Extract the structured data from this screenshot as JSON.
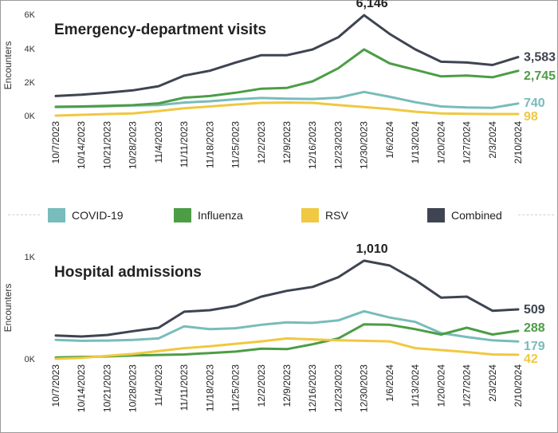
{
  "legend": [
    {
      "label": "COVID-19",
      "color": "#78bcbb"
    },
    {
      "label": "Influenza",
      "color": "#4c9d46"
    },
    {
      "label": "RSV",
      "color": "#f0c841"
    },
    {
      "label": "Combined",
      "color": "#3e4451"
    }
  ],
  "chart_data": [
    {
      "type": "line",
      "title": "Emergency-department visits",
      "ylabel": "Encounters",
      "yticks": [
        "6K",
        "4K",
        "2K",
        "0K"
      ],
      "ylim": [
        0,
        6200
      ],
      "categories": [
        "10/7/2023",
        "10/14/2023",
        "10/21/2023",
        "10/28/2023",
        "11/4/2023",
        "11/11/2023",
        "11/18/2023",
        "11/25/2023",
        "12/2/2023",
        "12/9/2023",
        "12/16/2023",
        "12/23/2023",
        "12/30/2023",
        "1/6/2024",
        "1/13/2024",
        "1/20/2024",
        "1/27/2024",
        "2/3/2024",
        "2/10/2024"
      ],
      "series": [
        {
          "name": "COVID-19",
          "color": "#78bcbb",
          "end_label": "740",
          "values": [
            520,
            540,
            570,
            620,
            650,
            800,
            880,
            1000,
            1080,
            1040,
            1020,
            1100,
            1450,
            1150,
            820,
            560,
            500,
            480,
            740
          ]
        },
        {
          "name": "Influenza",
          "color": "#4c9d46",
          "end_label": "2,745",
          "values": [
            540,
            560,
            600,
            640,
            750,
            1100,
            1200,
            1400,
            1650,
            1700,
            2100,
            2900,
            4050,
            3200,
            2800,
            2400,
            2450,
            2350,
            2745
          ]
        },
        {
          "name": "RSV",
          "color": "#f0c841",
          "end_label": "98",
          "values": [
            0,
            50,
            100,
            130,
            280,
            450,
            560,
            680,
            780,
            800,
            780,
            650,
            520,
            400,
            240,
            130,
            110,
            100,
            98
          ]
        },
        {
          "name": "Combined",
          "color": "#3e4451",
          "end_label": "3,583",
          "values": [
            1200,
            1280,
            1400,
            1550,
            1800,
            2450,
            2750,
            3250,
            3700,
            3700,
            4050,
            4800,
            6146,
            5000,
            4050,
            3300,
            3250,
            3100,
            3583
          ]
        }
      ],
      "peak_label": "6,146",
      "peak_series": "Combined",
      "peak_index": 12
    },
    {
      "type": "line",
      "title": "Hospital admissions",
      "ylabel": "Encounters",
      "yticks": [
        "1K",
        "0K"
      ],
      "ylim": [
        0,
        1050
      ],
      "categories": [
        "10/7/2023",
        "10/14/2023",
        "10/21/2023",
        "10/28/2023",
        "11/4/2023",
        "11/11/2023",
        "11/18/2023",
        "11/25/2023",
        "12/2/2023",
        "12/9/2023",
        "12/16/2023",
        "12/23/2023",
        "12/30/2023",
        "1/6/2024",
        "1/13/2024",
        "1/20/2024",
        "1/27/2024",
        "2/3/2024",
        "2/10/2024"
      ],
      "series": [
        {
          "name": "COVID-19",
          "color": "#78bcbb",
          "end_label": "179",
          "values": [
            195,
            185,
            188,
            195,
            210,
            335,
            305,
            315,
            350,
            375,
            370,
            395,
            490,
            425,
            380,
            265,
            225,
            190,
            179
          ]
        },
        {
          "name": "Influenza",
          "color": "#4c9d46",
          "end_label": "288",
          "values": [
            15,
            20,
            25,
            35,
            40,
            45,
            60,
            75,
            105,
            100,
            150,
            210,
            355,
            350,
            305,
            250,
            320,
            250,
            288
          ]
        },
        {
          "name": "RSV",
          "color": "#f0c841",
          "end_label": "42",
          "values": [
            0,
            10,
            30,
            50,
            80,
            110,
            130,
            155,
            180,
            210,
            200,
            190,
            185,
            180,
            110,
            90,
            70,
            45,
            42
          ]
        },
        {
          "name": "Combined",
          "color": "#3e4451",
          "end_label": "509",
          "values": [
            240,
            230,
            245,
            285,
            320,
            485,
            500,
            545,
            640,
            700,
            740,
            840,
            1010,
            960,
            810,
            630,
            640,
            495,
            509
          ]
        }
      ],
      "peak_label": "1,010",
      "peak_series": "Combined",
      "peak_index": 12
    }
  ]
}
